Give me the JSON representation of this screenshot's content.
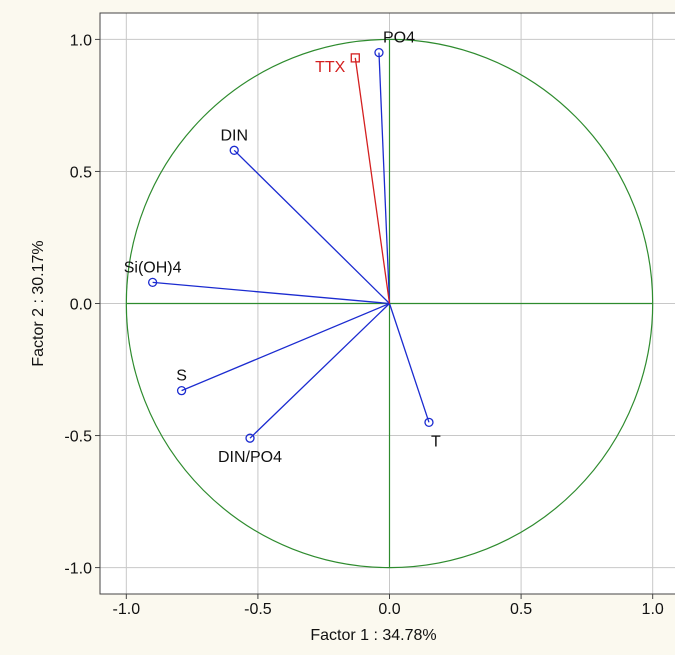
{
  "chart_data": {
    "type": "scatter",
    "subtype": "pca-correlation-circle",
    "title": "",
    "xlabel": "Factor 1 : 34.78%",
    "ylabel": "Factor 2 : 30.17%",
    "xlim": [
      -1.1,
      1.1
    ],
    "ylim": [
      -1.1,
      1.1
    ],
    "xticks": [
      "-1.0",
      "-0.5",
      "0.0",
      "0.5",
      "1.0"
    ],
    "yticks": [
      "1.0",
      "0.5",
      "0.0",
      "-0.5",
      "-1.0"
    ],
    "xtick_values": [
      -1.0,
      -0.5,
      0.0,
      0.5,
      1.0
    ],
    "ytick_values": [
      1.0,
      0.5,
      0.0,
      -0.5,
      -1.0
    ],
    "grid": true,
    "unit_circle": true,
    "background_color": "#fbf9ef",
    "colors": {
      "variables": "#1b2bd0",
      "supplementary": "#d42020",
      "circle": "#2e8b2e",
      "grid": "#c8c8c8"
    },
    "variables": [
      {
        "label": "PO4",
        "x": -0.04,
        "y": 0.95,
        "label_pos": "above-right"
      },
      {
        "label": "DIN",
        "x": -0.59,
        "y": 0.58,
        "label_pos": "above"
      },
      {
        "label": "Si(OH)4",
        "x": -0.9,
        "y": 0.08,
        "label_pos": "above"
      },
      {
        "label": "S",
        "x": -0.79,
        "y": -0.33,
        "label_pos": "above"
      },
      {
        "label": "DIN/PO4",
        "x": -0.53,
        "y": -0.51,
        "label_pos": "below"
      },
      {
        "label": "T",
        "x": 0.15,
        "y": -0.45,
        "label_pos": "below-right"
      }
    ],
    "supplementary": [
      {
        "label": "TTX",
        "x": -0.13,
        "y": 0.93,
        "label_pos": "left"
      }
    ]
  }
}
